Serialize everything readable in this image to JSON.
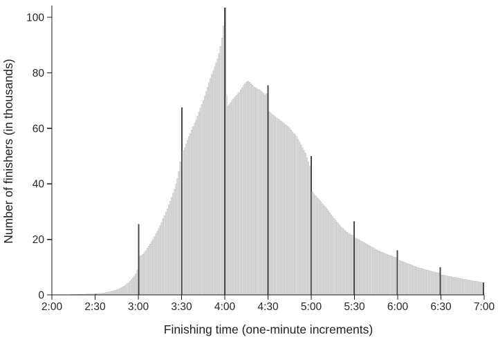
{
  "page": {
    "background_color": "#ffffff"
  },
  "chart_data": {
    "type": "bar",
    "title": "",
    "xlabel": "Finishing time (one-minute increments)",
    "ylabel": "Number of finishers (in thousands)",
    "x_start_minutes": 120,
    "x_end_minutes": 420,
    "x_tick_minutes": [
      120,
      150,
      180,
      210,
      240,
      270,
      300,
      330,
      360,
      390,
      420
    ],
    "x_tick_labels": [
      "2:00",
      "2:30",
      "3:00",
      "3:30",
      "4:00",
      "4:30",
      "5:00",
      "5:30",
      "6:00",
      "6:30",
      "7:00"
    ],
    "y_ticks": [
      0,
      20,
      40,
      60,
      80,
      100
    ],
    "ylim": [
      0,
      105
    ],
    "grid": false,
    "legend": false,
    "bar_color": "#dadada",
    "bar_edge_color": "#b8b8b8",
    "highlight_color": "#484848",
    "highlight_every_minutes": 30,
    "axis_color": "#1a1a1a",
    "text_color": "#262626",
    "values": [
      0.05,
      0.05,
      0.06,
      0.06,
      0.07,
      0.07,
      0.08,
      0.08,
      0.09,
      0.1,
      0.1,
      0.11,
      0.12,
      0.13,
      0.14,
      0.15,
      0.16,
      0.17,
      0.18,
      0.19,
      0.2,
      0.22,
      0.24,
      0.26,
      0.28,
      0.3,
      0.32,
      0.34,
      0.36,
      0.38,
      0.4,
      0.45,
      0.5,
      0.55,
      0.6,
      0.67,
      0.74,
      0.82,
      0.9,
      1.0,
      1.1,
      1.25,
      1.4,
      1.55,
      1.7,
      1.9,
      2.1,
      2.35,
      2.6,
      2.9,
      3.2,
      3.6,
      4.0,
      4.4,
      4.9,
      5.5,
      6.1,
      6.8,
      7.5,
      9.0,
      25.5,
      14,
      14.2,
      14.6,
      15.2,
      16,
      16.8,
      17.6,
      18.4,
      19.2,
      20,
      21,
      22,
      23,
      24,
      25,
      26.2,
      27.4,
      28.6,
      29.8,
      31,
      32.4,
      33.8,
      35.2,
      36.6,
      38,
      40,
      42,
      44.5,
      48,
      67.5,
      52,
      53,
      54.3,
      55.6,
      57,
      58.2,
      59.4,
      60.6,
      61.8,
      63,
      64.4,
      65.8,
      67.2,
      68.6,
      70,
      71.6,
      73.2,
      74.8,
      76.4,
      78,
      79.4,
      80.8,
      82.2,
      83.6,
      85,
      87,
      89.5,
      92.5,
      97,
      103.5,
      72,
      68,
      68.5,
      69.2,
      70,
      70.6,
      71.2,
      71.8,
      72.4,
      73,
      73.8,
      74.6,
      75.4,
      76,
      76.5,
      77,
      76.6,
      76,
      75.5,
      75,
      74.7,
      74.4,
      74.1,
      73.8,
      73.5,
      73,
      72.5,
      72,
      72.5,
      75.5,
      66,
      65.5,
      65,
      64.6,
      64.2,
      63.8,
      63.4,
      63,
      62.6,
      62.2,
      61.8,
      61.4,
      61,
      60.5,
      60,
      59.4,
      58.8,
      58.2,
      57.6,
      57,
      56,
      55,
      54,
      53,
      52,
      51,
      49.5,
      48,
      46.5,
      50,
      37,
      36.4,
      35.8,
      35.2,
      34.6,
      34,
      33.4,
      32.8,
      32.2,
      31.6,
      31,
      30.3,
      29.6,
      28.9,
      28.2,
      27.5,
      26.9,
      26.3,
      25.7,
      25.1,
      24.5,
      24,
      23.5,
      23,
      22.6,
      22.2,
      21.9,
      21.6,
      21.4,
      26.5,
      20.5,
      20.2,
      20,
      19.7,
      19.4,
      19.1,
      18.8,
      18.5,
      18.2,
      17.9,
      17.6,
      17.3,
      17,
      16.7,
      16.4,
      16.1,
      15.8,
      15.6,
      15.4,
      15.2,
      15,
      14.8,
      14.6,
      14.4,
      14.2,
      14,
      13.8,
      13.6,
      13.5,
      16,
      12.5,
      12.3,
      12.1,
      11.9,
      11.7,
      11.5,
      11.3,
      11.1,
      10.9,
      10.7,
      10.5,
      10.3,
      10.1,
      9.95,
      9.8,
      9.65,
      9.5,
      9.35,
      9.2,
      9.05,
      8.9,
      8.75,
      8.6,
      8.45,
      8.3,
      8.2,
      8.1,
      8,
      7.9,
      10,
      7.2,
      7.1,
      7,
      6.9,
      6.8,
      6.7,
      6.6,
      6.5,
      6.4,
      6.3,
      6.2,
      6.1,
      6,
      5.9,
      5.8,
      5.7,
      5.6,
      5.5,
      5.4,
      5.3,
      5.2,
      5.1,
      5,
      4.95,
      4.9,
      4.8,
      4.7,
      4.65,
      4.6,
      4.5
    ]
  }
}
